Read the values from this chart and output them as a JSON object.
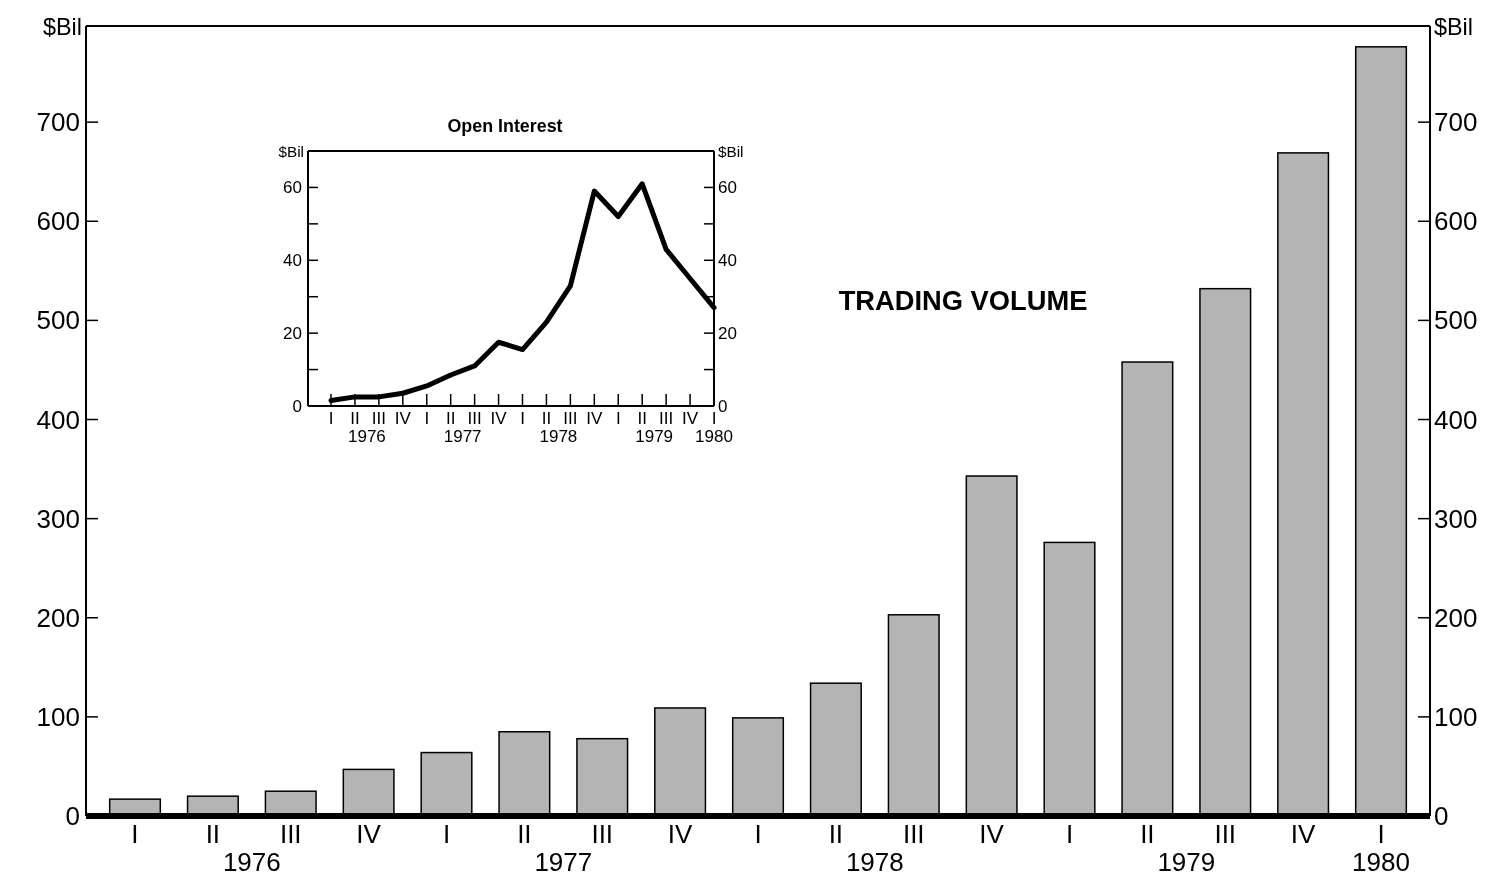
{
  "chart_data": [
    {
      "type": "bar",
      "title": "TRADING VOLUME",
      "ylabel": "$Bil",
      "y2label": "$Bil",
      "categories": [
        "I",
        "II",
        "III",
        "IV",
        "I",
        "II",
        "III",
        "IV",
        "I",
        "II",
        "III",
        "IV",
        "I",
        "II",
        "III",
        "IV",
        "I"
      ],
      "values": [
        17,
        20,
        25,
        47,
        64,
        85,
        78,
        109,
        99,
        134,
        203,
        343,
        276,
        458,
        532,
        669,
        776
      ],
      "color": "#b4b4b4",
      "ylim": [
        0,
        797
      ],
      "yticks": [
        0,
        100,
        200,
        300,
        400,
        500,
        600,
        700
      ],
      "y2lim": [
        0,
        797
      ],
      "y2ticks": [
        0,
        100,
        200,
        300,
        400,
        500,
        600,
        700
      ],
      "annotations": [
        "1976",
        "1977",
        "1978",
        "1979",
        "1980"
      ],
      "grid": false
    },
    {
      "type": "line",
      "title": "Open Interest",
      "ylabel": "$Bil",
      "y2label": "$Bil",
      "categories": [
        "I",
        "II",
        "III",
        "IV",
        "I",
        "II",
        "III",
        "IV",
        "I",
        "II",
        "III",
        "IV",
        "I",
        "II",
        "III",
        "IV",
        "I"
      ],
      "values": [
        1.5,
        2.5,
        2.5,
        3.5,
        5.5,
        8.5,
        11,
        17.5,
        15.5,
        23,
        33,
        59,
        52,
        61,
        43,
        35,
        27
      ],
      "color": "#000000",
      "ylim": [
        0,
        70
      ],
      "yticks": [
        0,
        {
          "value": 10,
          "label": null
        },
        20,
        {
          "value": 30,
          "label": null
        },
        40,
        {
          "value": 50,
          "label": null
        },
        60
      ],
      "y2lim": [
        0,
        70
      ],
      "y2ticks": [
        0,
        {
          "value": 10,
          "label": null
        },
        20,
        {
          "value": 30,
          "label": null
        },
        40,
        {
          "value": 50,
          "label": null
        },
        60
      ],
      "annotations": [
        "1976",
        "1977",
        "1978",
        "1979",
        "1980"
      ],
      "grid": false,
      "marker": "none",
      "line_style": "solid"
    }
  ]
}
